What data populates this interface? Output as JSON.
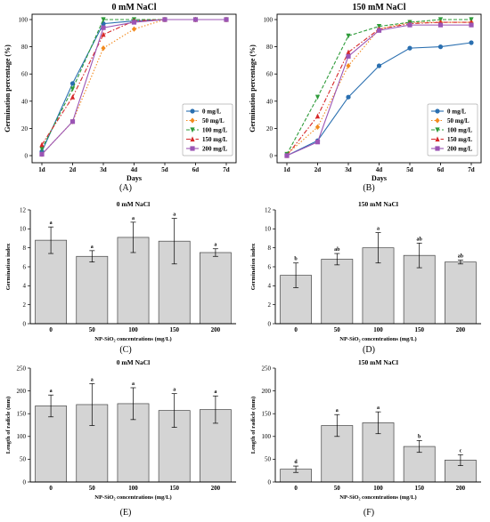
{
  "panel_labels": [
    "(A)",
    "(B)",
    "(C)",
    "(D)",
    "(E)",
    "(F)"
  ],
  "chart_data": [
    {
      "type": "line",
      "title": "0 mM NaCl",
      "xlabel": "Days",
      "ylabel": "Germination percentage (%)",
      "categories": [
        "1d",
        "2d",
        "3d",
        "4d",
        "5d",
        "6d",
        "7d"
      ],
      "ylim": [
        0,
        100
      ],
      "yticks": [
        0,
        20,
        40,
        60,
        80,
        100
      ],
      "legend": "bottom-right",
      "series": [
        {
          "name": "0 mg/L",
          "color": "#2a6fb0",
          "dash": "",
          "marker": "circle",
          "values": [
            3,
            53,
            97,
            99,
            100,
            100,
            100
          ]
        },
        {
          "name": "50 mg/L",
          "color": "#f28a1e",
          "dash": "1.5,2",
          "marker": "diamond",
          "values": [
            1,
            25,
            79,
            93,
            100,
            100,
            100
          ]
        },
        {
          "name": "100 mg/L",
          "color": "#2e9b3a",
          "dash": "4,2",
          "marker": "tri-down",
          "values": [
            5,
            49,
            100,
            100,
            100,
            100,
            100
          ]
        },
        {
          "name": "150 mg/L",
          "color": "#d62728",
          "dash": "5,2,1.5,2",
          "marker": "tri-up",
          "values": [
            8,
            43,
            89,
            99,
            100,
            100,
            100
          ]
        },
        {
          "name": "200 mg/L",
          "color": "#9b55b5",
          "dash": "",
          "marker": "square",
          "values": [
            1,
            25,
            94,
            98,
            100,
            100,
            100
          ]
        }
      ]
    },
    {
      "type": "line",
      "title": "150 mM NaCl",
      "xlabel": "Days",
      "ylabel": "Germination percentage (%)",
      "categories": [
        "1d",
        "2d",
        "3d",
        "4d",
        "5d",
        "6d",
        "7d"
      ],
      "ylim": [
        0,
        100
      ],
      "yticks": [
        0,
        20,
        40,
        60,
        80,
        100
      ],
      "legend": "bottom-right",
      "series": [
        {
          "name": "0 mg/L",
          "color": "#2a6fb0",
          "dash": "",
          "marker": "circle",
          "values": [
            0,
            11,
            43,
            66,
            79,
            80,
            83
          ]
        },
        {
          "name": "50 mg/L",
          "color": "#f28a1e",
          "dash": "1.5,2",
          "marker": "diamond",
          "values": [
            1,
            21,
            66,
            93,
            98,
            98,
            98
          ]
        },
        {
          "name": "100 mg/L",
          "color": "#2e9b3a",
          "dash": "4,2",
          "marker": "tri-down",
          "values": [
            1,
            43,
            88,
            95,
            98,
            100,
            100
          ]
        },
        {
          "name": "150 mg/L",
          "color": "#d62728",
          "dash": "5,2,1.5,2",
          "marker": "tri-up",
          "values": [
            0,
            29,
            76,
            93,
            97,
            98,
            98
          ]
        },
        {
          "name": "200 mg/L",
          "color": "#9b55b5",
          "dash": "",
          "marker": "square",
          "values": [
            0,
            10,
            73,
            92,
            96,
            96,
            96
          ]
        }
      ]
    },
    {
      "type": "bar",
      "title": "0 mM NaCl",
      "xlabel": "NP-SiO₂ concentrations (mg/L)",
      "ylabel": "Germination index",
      "categories": [
        "0",
        "50",
        "100",
        "150",
        "200"
      ],
      "values": [
        8.8,
        7.1,
        9.1,
        8.7,
        7.5
      ],
      "errors": [
        1.4,
        0.6,
        1.6,
        2.4,
        0.4
      ],
      "letters": [
        "a",
        "a",
        "a",
        "a",
        "a"
      ],
      "ylim": [
        0,
        12
      ],
      "yticks": [
        0,
        2,
        4,
        6,
        8,
        10,
        12
      ]
    },
    {
      "type": "bar",
      "title": "150 mM NaCl",
      "xlabel": "NP-SiO₂ concentrations (mg/L)",
      "ylabel": "Germination index",
      "categories": [
        "0",
        "50",
        "100",
        "150",
        "200"
      ],
      "values": [
        5.1,
        6.8,
        8.0,
        7.2,
        6.5
      ],
      "errors": [
        1.3,
        0.6,
        1.6,
        1.3,
        0.2
      ],
      "letters": [
        "b",
        "ab",
        "a",
        "ab",
        "ab"
      ],
      "ylim": [
        0,
        12
      ],
      "yticks": [
        0,
        2,
        4,
        6,
        8,
        10,
        12
      ]
    },
    {
      "type": "bar",
      "title": "0 mM NaCl",
      "xlabel": "NP-SiO₂ concentrations (mg/L)",
      "ylabel": "Length of radicle (mm)",
      "categories": [
        "0",
        "50",
        "100",
        "150",
        "200"
      ],
      "values": [
        167,
        170,
        172,
        157,
        159
      ],
      "errors": [
        24,
        46,
        35,
        37,
        30
      ],
      "letters": [
        "a",
        "a",
        "a",
        "a",
        "a"
      ],
      "ylim": [
        0,
        250
      ],
      "yticks": [
        0,
        50,
        100,
        150,
        200,
        250
      ]
    },
    {
      "type": "bar",
      "title": "150 mM NaCl",
      "xlabel": "NP-SiO₂ concentrations (mg/L)",
      "ylabel": "Length of radicle (mm)",
      "categories": [
        "0",
        "50",
        "100",
        "150",
        "200"
      ],
      "values": [
        28,
        124,
        130,
        78,
        48
      ],
      "errors": [
        7,
        24,
        24,
        13,
        12
      ],
      "letters": [
        "d",
        "a",
        "a",
        "b",
        "c"
      ],
      "ylim": [
        0,
        250
      ],
      "yticks": [
        0,
        50,
        100,
        150,
        200,
        250
      ]
    }
  ]
}
